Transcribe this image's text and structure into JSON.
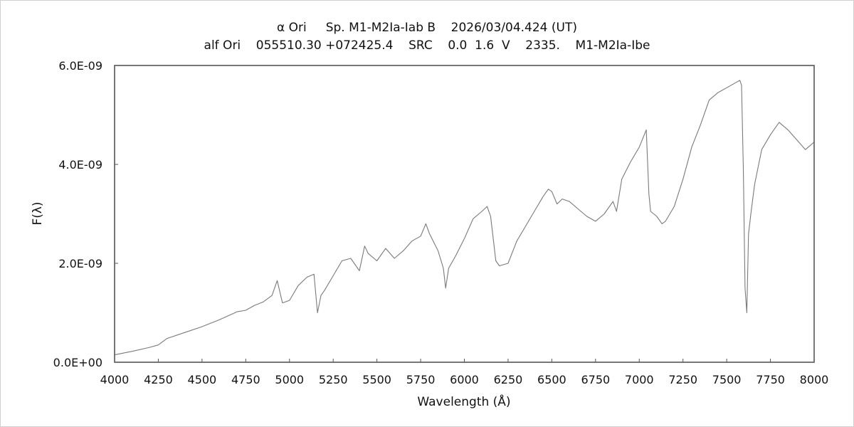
{
  "header": {
    "title_line1": "α Ori     Sp. M1-M2Ia-Iab B    2026/03/04.424 (UT)",
    "title_line2": "alf Ori    055510.30 +072425.4    SRC    0.0  1.6  V    2335.    M1-M2Ia-Ibe"
  },
  "chart_data": {
    "type": "line",
    "xlabel": "Wavelength (Å)",
    "ylabel": "F(λ)",
    "xlim": [
      4000,
      8000
    ],
    "ylim": [
      0,
      6e-09
    ],
    "x_ticks": [
      4000,
      4250,
      4500,
      4750,
      5000,
      5250,
      5500,
      5750,
      6000,
      6250,
      6500,
      6750,
      7000,
      7250,
      7500,
      7750,
      8000
    ],
    "y_ticks": [
      0,
      2e-09,
      4e-09,
      6e-09
    ],
    "y_tick_labels": [
      "0.0E+00",
      "2.0E-09",
      "4.0E-09",
      "6.0E-09"
    ],
    "grid": false,
    "line_color": "#7a7a7a",
    "axes_color": "#555555",
    "series": [
      {
        "x": [
          4000,
          4100,
          4200,
          4250,
          4300,
          4400,
          4500,
          4600,
          4700,
          4750,
          4800,
          4850,
          4900,
          4930,
          4960,
          5000,
          5050,
          5100,
          5140,
          5160,
          5180,
          5200,
          5250,
          5300,
          5350,
          5400,
          5430,
          5450,
          5500,
          5550,
          5600,
          5650,
          5700,
          5750,
          5780,
          5800,
          5850,
          5880,
          5893,
          5910,
          5950,
          6000,
          6050,
          6100,
          6130,
          6150,
          6180,
          6200,
          6250,
          6300,
          6350,
          6400,
          6450,
          6480,
          6500,
          6530,
          6560,
          6600,
          6650,
          6700,
          6750,
          6800,
          6850,
          6870,
          6900,
          6950,
          7000,
          7040,
          7055,
          7065,
          7100,
          7130,
          7150,
          7200,
          7250,
          7300,
          7350,
          7400,
          7450,
          7500,
          7550,
          7575,
          7585,
          7595,
          7605,
          7615,
          7625,
          7640,
          7660,
          7700,
          7750,
          7800,
          7850,
          7900,
          7950,
          8000
        ],
        "y": [
          1.5e-10,
          2.2e-10,
          3e-10,
          3.5e-10,
          4.8e-10,
          6e-10,
          7.2e-10,
          8.6e-10,
          1.02e-09,
          1.05e-09,
          1.15e-09,
          1.22e-09,
          1.35e-09,
          1.65e-09,
          1.2e-09,
          1.25e-09,
          1.55e-09,
          1.72e-09,
          1.78e-09,
          1e-09,
          1.35e-09,
          1.45e-09,
          1.75e-09,
          2.05e-09,
          2.1e-09,
          1.85e-09,
          2.35e-09,
          2.2e-09,
          2.05e-09,
          2.3e-09,
          2.1e-09,
          2.25e-09,
          2.45e-09,
          2.55e-09,
          2.8e-09,
          2.6e-09,
          2.25e-09,
          1.9e-09,
          1.5e-09,
          1.9e-09,
          2.15e-09,
          2.5e-09,
          2.9e-09,
          3.05e-09,
          3.15e-09,
          2.95e-09,
          2.05e-09,
          1.95e-09,
          2e-09,
          2.45e-09,
          2.75e-09,
          3.05e-09,
          3.35e-09,
          3.5e-09,
          3.45e-09,
          3.2e-09,
          3.3e-09,
          3.25e-09,
          3.1e-09,
          2.95e-09,
          2.85e-09,
          3e-09,
          3.25e-09,
          3.05e-09,
          3.7e-09,
          4.05e-09,
          4.35e-09,
          4.7e-09,
          3.4e-09,
          3.05e-09,
          2.95e-09,
          2.8e-09,
          2.85e-09,
          3.15e-09,
          3.7e-09,
          4.35e-09,
          4.8e-09,
          5.3e-09,
          5.45e-09,
          5.55e-09,
          5.65e-09,
          5.7e-09,
          5.6e-09,
          3.9e-09,
          1.5e-09,
          1e-09,
          2.6e-09,
          3.05e-09,
          3.6e-09,
          4.3e-09,
          4.6e-09,
          4.85e-09,
          4.7e-09,
          4.5e-09,
          4.3e-09,
          4.45e-09
        ]
      }
    ]
  }
}
